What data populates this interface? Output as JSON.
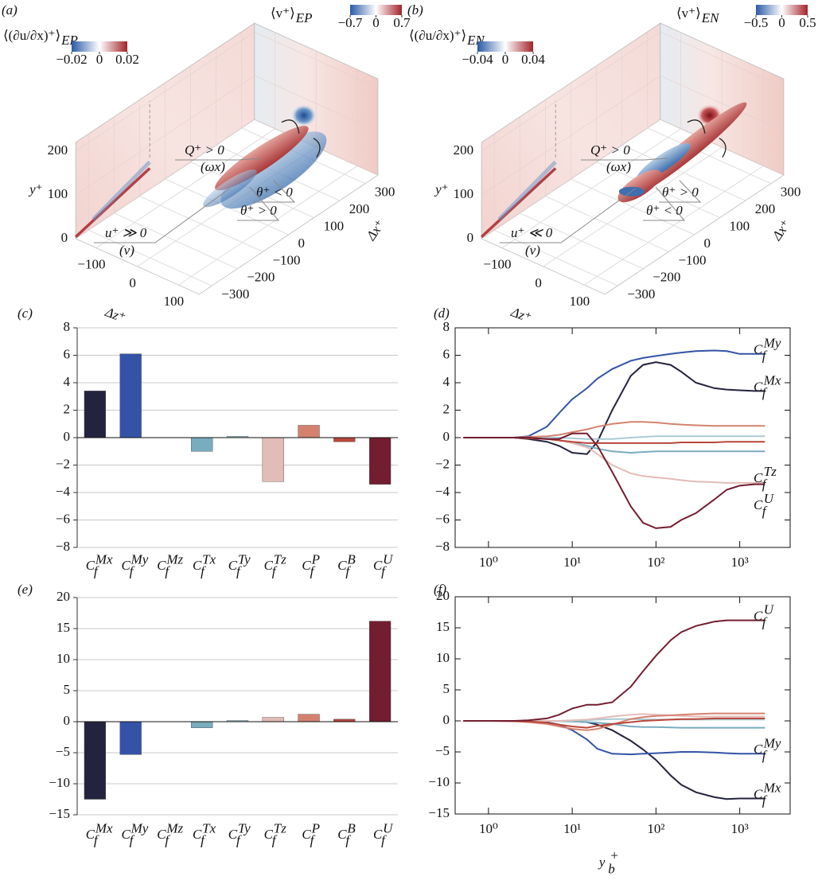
{
  "chart_data": [
    {
      "type": "surface3d",
      "panel_label": "(a)",
      "colorbar_left": {
        "title": "⟨(∂u/∂x)⁺⟩",
        "title_sub": "EP",
        "clim": [
          -0.02,
          0.02
        ],
        "ticks": [
          {
            "value": -0.02,
            "label": "−0.02"
          },
          0,
          0.02
        ]
      },
      "colorbar_right": {
        "title": "⟨v⁺⟩",
        "title_sub": "EP",
        "clim": [
          -0.7,
          0.7
        ],
        "ticks": [
          {
            "value": -0.7,
            "label": "−0.7"
          },
          0,
          0.7
        ]
      },
      "ylabel": "y⁺",
      "zlabel": "Δz⁺",
      "xlabel": "Δx⁺",
      "ylim": [
        0,
        220
      ],
      "yticks": [
        0,
        100,
        200
      ],
      "zlim": [
        -150,
        150
      ],
      "zticks": [
        {
          "value": -100,
          "label": "−100"
        },
        0,
        100
      ],
      "xlim": [
        -350,
        350
      ],
      "xticks": [
        {
          "value": -300,
          "label": "−300"
        },
        {
          "value": -200,
          "label": "−200"
        },
        {
          "value": -100,
          "label": "−100"
        },
        0,
        100,
        200,
        300
      ],
      "annotations": [
        "Q⁺ > 0",
        "(ωx)",
        "u⁺ ≫ 0",
        "(v)",
        "θ⁺ < 0",
        "θ⁺ > 0"
      ]
    },
    {
      "type": "surface3d",
      "panel_label": "(b)",
      "colorbar_left": {
        "title": "⟨(∂u/∂x)⁺⟩",
        "title_sub": "EN",
        "clim": [
          -0.04,
          0.04
        ],
        "ticks": [
          {
            "value": -0.04,
            "label": "−0.04"
          },
          0,
          0.04
        ]
      },
      "colorbar_right": {
        "title": "⟨v⁺⟩",
        "title_sub": "EN",
        "clim": [
          -0.5,
          0.5
        ],
        "ticks": [
          {
            "value": -0.5,
            "label": "−0.5"
          },
          0,
          0.5
        ]
      },
      "ylabel": "y⁺",
      "zlabel": "Δz⁺",
      "xlabel": "Δx⁺",
      "ylim": [
        0,
        220
      ],
      "yticks": [
        0,
        100,
        200
      ],
      "zlim": [
        -150,
        150
      ],
      "zticks": [
        {
          "value": -100,
          "label": "−100"
        },
        0,
        100
      ],
      "xlim": [
        -350,
        350
      ],
      "xticks": [
        {
          "value": -300,
          "label": "−300"
        },
        {
          "value": -200,
          "label": "−200"
        },
        {
          "value": -100,
          "label": "−100"
        },
        0,
        100,
        200,
        300
      ],
      "annotations": [
        "Q⁺ > 0",
        "(ωx)",
        "u⁺ ≪ 0",
        "(v)",
        "θ⁺ > 0",
        "θ⁺ < 0"
      ]
    },
    {
      "type": "bar",
      "panel_label": "(c)",
      "categories": [
        {
          "symbol": "C",
          "sub": "f",
          "sup": "Mx"
        },
        {
          "symbol": "C",
          "sub": "f",
          "sup": "My"
        },
        {
          "symbol": "C",
          "sub": "f",
          "sup": "Mz"
        },
        {
          "symbol": "C",
          "sub": "f",
          "sup": "Tx"
        },
        {
          "symbol": "C",
          "sub": "f",
          "sup": "Ty"
        },
        {
          "symbol": "C",
          "sub": "f",
          "sup": "Tz"
        },
        {
          "symbol": "C",
          "sub": "f",
          "sup": "P"
        },
        {
          "symbol": "C",
          "sub": "f",
          "sup": "B"
        },
        {
          "symbol": "C",
          "sub": "f",
          "sup": "U"
        }
      ],
      "values": [
        3.4,
        6.1,
        0,
        -1.0,
        0.1,
        -3.2,
        0.9,
        -0.3,
        -3.4
      ],
      "colors": [
        "#24233f",
        "#3453a6",
        "#2f5fa0",
        "#78acbf",
        "#a9cbd6",
        "#e2bcb7",
        "#d4826f",
        "#b9463a",
        "#731d30"
      ],
      "ylim": [
        -8,
        8
      ],
      "yticks": [
        {
          "value": -8,
          "label": "−8"
        },
        {
          "value": -6,
          "label": "−6"
        },
        {
          "value": -4,
          "label": "−4"
        },
        {
          "value": -2,
          "label": "−2"
        },
        0,
        2,
        4,
        6,
        8
      ],
      "grid": true
    },
    {
      "type": "line",
      "panel_label": "(d)",
      "xscale": "log",
      "x": [
        0.5,
        1,
        2,
        3,
        5,
        7,
        10,
        15,
        20,
        30,
        50,
        70,
        100,
        150,
        200,
        300,
        500,
        700,
        1000,
        1500,
        2000
      ],
      "xlim": [
        0.4,
        4000
      ],
      "xticks": [
        {
          "value": 1,
          "label": "10⁰"
        },
        {
          "value": 10,
          "label": "10¹"
        },
        {
          "value": 100,
          "label": "10²"
        },
        {
          "value": 1000,
          "label": "10³"
        }
      ],
      "ylim": [
        -8,
        8
      ],
      "yticks": [
        {
          "value": -8,
          "label": "−8"
        },
        {
          "value": -6,
          "label": "−6"
        },
        {
          "value": -4,
          "label": "−4"
        },
        {
          "value": -2,
          "label": "−2"
        },
        0,
        2,
        4,
        6,
        8
      ],
      "series": [
        {
          "name": {
            "symbol": "C",
            "sub": "f",
            "sup": "Mx"
          },
          "color": "#24233f",
          "values": [
            0,
            0,
            0,
            -0.1,
            -0.3,
            -0.6,
            -1.1,
            -1.2,
            -0.3,
            2.0,
            4.5,
            5.3,
            5.5,
            5.3,
            4.8,
            4.0,
            3.6,
            3.5,
            3.45,
            3.4,
            3.4
          ]
        },
        {
          "name": {
            "symbol": "C",
            "sub": "f",
            "sup": "My"
          },
          "color": "#3453a6",
          "values": [
            0,
            0,
            0,
            0.1,
            0.8,
            1.8,
            2.8,
            3.6,
            4.3,
            5.0,
            5.6,
            5.8,
            5.95,
            6.1,
            6.2,
            6.3,
            6.35,
            6.3,
            6.1,
            6.1,
            6.1
          ]
        },
        {
          "color": "#78acbf",
          "values": [
            0,
            0,
            0,
            -0.05,
            -0.1,
            -0.2,
            -0.35,
            -0.6,
            -0.8,
            -1.0,
            -1.1,
            -1.05,
            -1.0,
            -1.0,
            -1.0,
            -1.0,
            -1.0,
            -1.0,
            -1.0,
            -1.0,
            -1.0
          ]
        },
        {
          "color": "#a9cbd6",
          "values": [
            0,
            0,
            0,
            0,
            0,
            0,
            -0.05,
            -0.1,
            -0.1,
            -0.1,
            0,
            0.05,
            0.1,
            0.1,
            0.1,
            0.1,
            0.1,
            0.1,
            0.1,
            0.1,
            0.1
          ]
        },
        {
          "name": {
            "symbol": "C",
            "sub": "f",
            "sup": "Tz"
          },
          "color": "#e2bcb7",
          "values": [
            0,
            0,
            0,
            0,
            -0.1,
            -0.2,
            -0.4,
            -0.7,
            -1.2,
            -2.0,
            -2.6,
            -2.8,
            -2.9,
            -3.0,
            -3.1,
            -3.2,
            -3.25,
            -3.3,
            -3.3,
            -3.3,
            -3.25
          ]
        },
        {
          "color": "#d4826f",
          "values": [
            0,
            0,
            0,
            0.05,
            0.1,
            0.2,
            0.4,
            0.6,
            0.8,
            1.0,
            1.15,
            1.15,
            1.1,
            1.0,
            0.95,
            0.9,
            0.85,
            0.85,
            0.85,
            0.85,
            0.85
          ]
        },
        {
          "color": "#b9463a",
          "values": [
            0,
            0,
            0,
            -0.05,
            -0.1,
            -0.2,
            -0.3,
            -0.4,
            -0.4,
            -0.4,
            -0.4,
            -0.4,
            -0.4,
            -0.4,
            -0.35,
            -0.35,
            -0.35,
            -0.3,
            -0.3,
            -0.3,
            -0.3
          ]
        },
        {
          "name": {
            "symbol": "C",
            "sub": "f",
            "sup": "U"
          },
          "color": "#731d30",
          "values": [
            0,
            0,
            0,
            0,
            -0.1,
            -0.1,
            0.3,
            0.3,
            -0.6,
            -2.5,
            -5.0,
            -6.2,
            -6.6,
            -6.5,
            -6.0,
            -5.5,
            -4.5,
            -3.8,
            -3.5,
            -3.4,
            -3.4
          ]
        }
      ]
    },
    {
      "type": "bar",
      "panel_label": "(e)",
      "categories": [
        {
          "symbol": "C",
          "sub": "f",
          "sup": "Mx"
        },
        {
          "symbol": "C",
          "sub": "f",
          "sup": "My"
        },
        {
          "symbol": "C",
          "sub": "f",
          "sup": "Mz"
        },
        {
          "symbol": "C",
          "sub": "f",
          "sup": "Tx"
        },
        {
          "symbol": "C",
          "sub": "f",
          "sup": "Ty"
        },
        {
          "symbol": "C",
          "sub": "f",
          "sup": "Tz"
        },
        {
          "symbol": "C",
          "sub": "f",
          "sup": "P"
        },
        {
          "symbol": "C",
          "sub": "f",
          "sup": "B"
        },
        {
          "symbol": "C",
          "sub": "f",
          "sup": "U"
        }
      ],
      "values": [
        -12.5,
        -5.3,
        0,
        -1.0,
        0.2,
        0.7,
        1.2,
        0.4,
        16.2
      ],
      "colors": [
        "#24233f",
        "#3453a6",
        "#2f5fa0",
        "#78acbf",
        "#a9cbd6",
        "#e2bcb7",
        "#d4826f",
        "#b9463a",
        "#731d30"
      ],
      "ylim": [
        -15,
        20
      ],
      "yticks": [
        {
          "value": -15,
          "label": "−15"
        },
        {
          "value": -10,
          "label": "−10"
        },
        {
          "value": -5,
          "label": "−5"
        },
        0,
        5,
        10,
        15,
        20
      ],
      "grid": true
    },
    {
      "type": "line",
      "panel_label": "(f)",
      "xscale": "log",
      "xlabel": {
        "symbol": "y",
        "sub": "b",
        "sup": "+"
      },
      "x": [
        0.5,
        1,
        2,
        3,
        5,
        7,
        10,
        15,
        20,
        30,
        50,
        70,
        100,
        150,
        200,
        300,
        500,
        700,
        1000,
        1500,
        2000
      ],
      "xlim": [
        0.4,
        4000
      ],
      "xticks": [
        {
          "value": 1,
          "label": "10⁰"
        },
        {
          "value": 10,
          "label": "10¹"
        },
        {
          "value": 100,
          "label": "10²"
        },
        {
          "value": 1000,
          "label": "10³"
        }
      ],
      "ylim": [
        -15,
        20
      ],
      "yticks": [
        {
          "value": -15,
          "label": "−15"
        },
        {
          "value": -10,
          "label": "−10"
        },
        {
          "value": -5,
          "label": "−5"
        },
        0,
        5,
        10,
        15,
        20
      ],
      "series": [
        {
          "name": {
            "symbol": "C",
            "sub": "f",
            "sup": "Mx"
          },
          "color": "#24233f",
          "values": [
            0,
            0,
            0,
            0,
            0,
            0,
            -0.05,
            -0.2,
            -0.6,
            -1.5,
            -3.2,
            -4.6,
            -6.3,
            -8.8,
            -10.3,
            -11.5,
            -12.3,
            -12.6,
            -12.5,
            -12.5,
            -12.5
          ]
        },
        {
          "name": {
            "symbol": "C",
            "sub": "f",
            "sup": "My"
          },
          "color": "#3453a6",
          "values": [
            0,
            0,
            0,
            -0.05,
            -0.2,
            -0.6,
            -1.5,
            -3.0,
            -4.5,
            -5.3,
            -5.4,
            -5.3,
            -5.2,
            -5.1,
            -5.0,
            -5.0,
            -5.1,
            -5.2,
            -5.3,
            -5.3,
            -5.3
          ]
        },
        {
          "color": "#78acbf",
          "values": [
            0,
            0,
            0,
            0,
            0,
            -0.05,
            -0.1,
            -0.2,
            -0.3,
            -0.5,
            -0.9,
            -1.0,
            -1.0,
            -1.05,
            -1.1,
            -1.1,
            -1.1,
            -1.1,
            -1.1,
            -1.1,
            -1.1
          ]
        },
        {
          "color": "#a9cbd6",
          "values": [
            0,
            0,
            0,
            0,
            0,
            0,
            0.05,
            0.1,
            0.2,
            0.3,
            0.3,
            0.25,
            0.2,
            0.2,
            0.2,
            0.2,
            0.2,
            0.2,
            0.2,
            0.2,
            0.2
          ]
        },
        {
          "color": "#e2bcb7",
          "values": [
            0,
            0,
            0,
            0,
            0,
            0,
            0.1,
            0.2,
            0.4,
            0.7,
            1.0,
            1.1,
            1.0,
            0.9,
            0.8,
            0.7,
            0.7,
            0.7,
            0.7,
            0.7,
            0.7
          ]
        },
        {
          "color": "#d4826f",
          "values": [
            0,
            0,
            -0.05,
            -0.2,
            -0.5,
            -0.9,
            -1.3,
            -1.5,
            -1.3,
            -0.6,
            0.3,
            0.6,
            0.8,
            0.9,
            1.0,
            1.1,
            1.2,
            1.2,
            1.2,
            1.2,
            1.2
          ]
        },
        {
          "color": "#b9463a",
          "values": [
            0,
            0,
            -0.05,
            -0.1,
            -0.3,
            -0.6,
            -0.9,
            -1.1,
            -0.8,
            -0.5,
            -0.2,
            0,
            0.1,
            0.2,
            0.3,
            0.3,
            0.4,
            0.4,
            0.4,
            0.4,
            0.4
          ]
        },
        {
          "name": {
            "symbol": "C",
            "sub": "f",
            "sup": "U"
          },
          "color": "#731d30",
          "values": [
            0,
            0,
            0,
            0.1,
            0.4,
            1.0,
            2.0,
            2.6,
            2.6,
            3.0,
            5.5,
            8.0,
            10.5,
            13.0,
            14.3,
            15.3,
            16.0,
            16.2,
            16.2,
            16.2,
            16.2
          ]
        }
      ]
    }
  ]
}
